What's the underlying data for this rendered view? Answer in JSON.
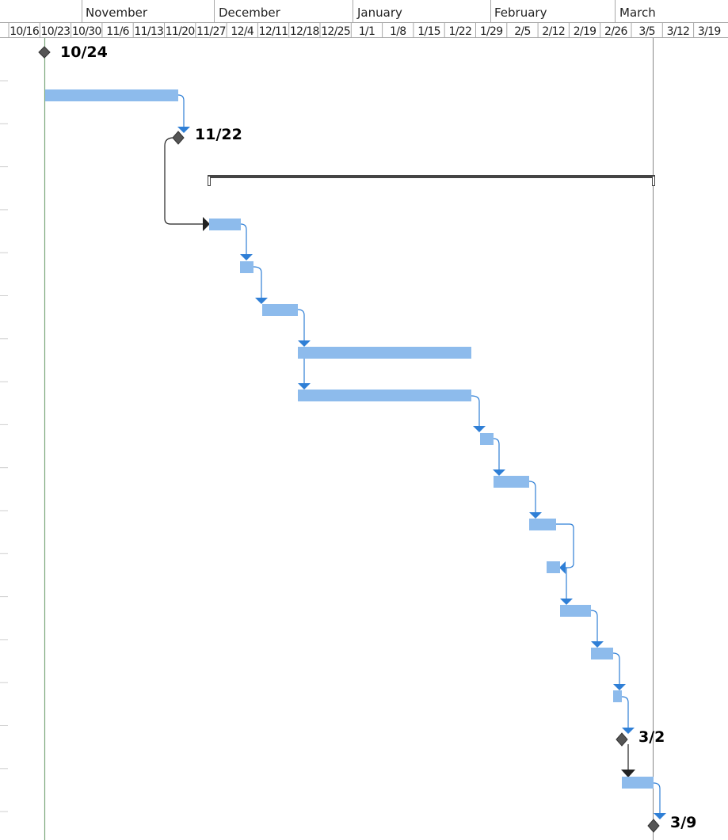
{
  "timeline": {
    "months": [
      "November",
      "December",
      "January",
      "February",
      "March"
    ],
    "weeks": [
      "10/16",
      "10/23",
      "10/30",
      "11/6",
      "11/13",
      "11/20",
      "11/27",
      "12/4",
      "12/11",
      "12/18",
      "12/25",
      "1/1",
      "1/8",
      "1/15",
      "1/22",
      "1/29",
      "2/5",
      "2/12",
      "2/19",
      "2/26",
      "3/5",
      "3/12",
      "3/19"
    ]
  },
  "markers": {
    "today_line_color": "#7aa87a",
    "status_line_color": "#888888"
  },
  "milestones": [
    {
      "date": "10/24",
      "label": "10/24"
    },
    {
      "date": "11/22",
      "label": "11/22"
    },
    {
      "date": "3/2",
      "label": "3/2"
    },
    {
      "date": "3/9",
      "label": "3/9"
    }
  ],
  "colors": {
    "task_bar": "#8dbbec",
    "link": "#2f7fd6",
    "summary": "#444444",
    "milestone": "#555555"
  }
}
